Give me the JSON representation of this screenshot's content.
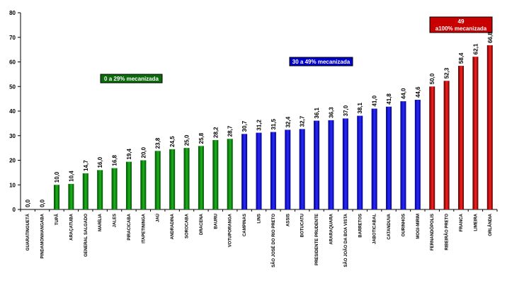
{
  "chart_data": {
    "type": "bar",
    "ylim": [
      0,
      80
    ],
    "yticks": [
      0,
      10,
      20,
      30,
      40,
      50,
      60,
      70,
      80
    ],
    "ytick_labels": [
      "0",
      "10",
      "20",
      "30",
      "40",
      "50",
      "60",
      "70",
      "80"
    ],
    "grid": false,
    "categories": [
      "GUARATINGUETÁ",
      "PINDAMONHANGABA",
      "TUPÃ",
      "ARAÇATUBA",
      "GENERAL SALGADO",
      "MARÍLIA",
      "JALES",
      "PIRACICABA",
      "ITAPETININGA",
      "JAÚ",
      "ANDRADINA",
      "SOROCABA",
      "DRACENA",
      "BAURU",
      "VOTUPORANGA",
      "CAMPINAS",
      "LINS",
      "SÃO JOSÉ DO RIO PRETO",
      "ASSIS",
      "BOTUCATU",
      "PRESIDENTE PRUDENTE",
      "ARARAQUARA",
      "SÃO JOÃO DA BOA VISTA",
      "BARRETOS",
      "JABOTICABAL",
      "CATANDUVA",
      "OURINHOS",
      "MOGI-MIRIM",
      "FERNANDÓPOLIS",
      "RIBEIRÃO PRETO",
      "FRANCA",
      "LIMEIRA",
      "ORLÂNDIA"
    ],
    "values": [
      0.0,
      0.0,
      10.0,
      10.4,
      14.7,
      16.0,
      16.8,
      19.4,
      20.0,
      23.8,
      24.5,
      25.0,
      25.8,
      28.2,
      28.7,
      30.7,
      31.2,
      31.5,
      32.4,
      32.7,
      36.1,
      36.3,
      37.0,
      38.1,
      41.0,
      41.8,
      44.0,
      44.6,
      50.0,
      52.3,
      58.4,
      62.1,
      66.8
    ],
    "value_labels": [
      "0,0",
      "0,0",
      "10,0",
      "10,4",
      "14,7",
      "16,0",
      "16,8",
      "19,4",
      "20,0",
      "23,8",
      "24,5",
      "25,0",
      "25,8",
      "28,2",
      "28,7",
      "30,7",
      "31,2",
      "31,5",
      "32,4",
      "32,7",
      "36,1",
      "36,3",
      "37,0",
      "38,1",
      "41,0",
      "41,8",
      "44,0",
      "44,6",
      "50,0",
      "52,3",
      "58,4",
      "62,1",
      "66,8"
    ],
    "groups": [
      {
        "label": "0 a 29% mecanizada",
        "range": [
          0,
          29
        ],
        "color_dark": "#005000",
        "color_light": "#1fb41f",
        "box_color": "#0b6b0b"
      },
      {
        "label": "30 a 49% mecanizada",
        "range": [
          30,
          49
        ],
        "color_dark": "#00008a",
        "color_light": "#2a2aff",
        "box_color": "#0000c8"
      },
      {
        "label": "49 a100% mecanizada",
        "range": [
          49,
          100
        ],
        "color_dark": "#5a0000",
        "color_light": "#ff2020",
        "box_color": "#c80000"
      }
    ]
  }
}
